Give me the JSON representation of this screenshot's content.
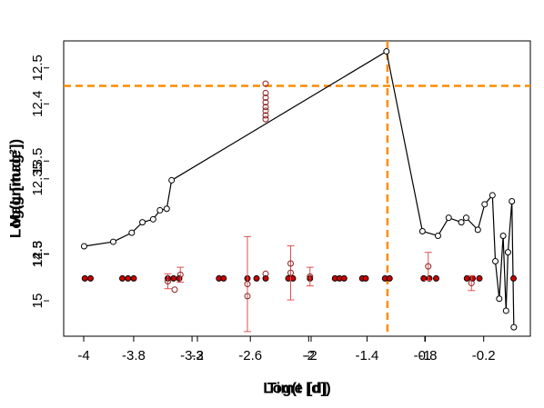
{
  "chart_data": [
    {
      "type": "line",
      "x_label": "Log(t [d])",
      "y_label": "Log(L [mag²])",
      "xlim": [
        -4.52,
        0.28
      ],
      "ylim": [
        12.245,
        12.442
      ],
      "xticks": [
        -3.8,
        -3.2,
        -2.6,
        -2.0,
        -1.4,
        -0.8,
        -0.2
      ],
      "yticks": [
        12.3,
        12.35,
        12.4
      ],
      "hline": 12.412,
      "vline": -1.19,
      "annotation_color": "#ff8c00",
      "series": [
        {
          "color": "#000000",
          "x": [
            -4.31,
            -4.01,
            -3.82,
            -3.71,
            -3.6,
            -3.53,
            -3.46,
            -3.41,
            -1.2,
            -0.83,
            -0.67,
            -0.56,
            -0.43,
            -0.38,
            -0.26,
            -0.19,
            -0.11,
            -0.08,
            -0.04,
            0.0,
            0.03,
            0.05,
            0.09,
            0.11
          ],
          "values": [
            12.305,
            12.308,
            12.314,
            12.321,
            12.323,
            12.329,
            12.33,
            12.349,
            12.435,
            12.315,
            12.312,
            12.324,
            12.321,
            12.324,
            12.316,
            12.333,
            12.339,
            12.295,
            12.27,
            12.312,
            12.262,
            12.301,
            12.335,
            12.251
          ]
        }
      ]
    },
    {
      "type": "scatter",
      "x_label": "Time [d]",
      "y_label": "Magnitude",
      "xlim": [
        -4.176,
        -0.072
      ],
      "ylim": [
        15.38,
        12.21
      ],
      "xticks": [
        -4,
        -3,
        -2,
        -1
      ],
      "yticks": [
        12.5,
        13.5,
        14.5,
        15.0
      ],
      "series": [
        {
          "color": "#cc0000",
          "filled": true,
          "x": [
            -3.99,
            -3.94,
            -3.66,
            -3.61,
            -3.56,
            -3.26,
            -3.21,
            -3.16,
            -2.81,
            -2.77,
            -2.56,
            -2.48,
            -2.4,
            -2.2,
            -2.16,
            -2.01,
            -1.79,
            -1.75,
            -1.71,
            -1.55,
            -1.52,
            -1.35,
            -1.31,
            -1.01,
            -0.96,
            -0.9,
            -0.63,
            -0.58,
            -0.52,
            -0.22
          ],
          "values": [
            14.76,
            14.76,
            14.76,
            14.76,
            14.76,
            14.76,
            14.76,
            14.76,
            14.76,
            14.76,
            14.76,
            14.76,
            14.76,
            14.76,
            14.76,
            14.76,
            14.76,
            14.76,
            14.76,
            14.76,
            14.76,
            14.76,
            14.76,
            14.76,
            14.76,
            14.76,
            14.76,
            14.76,
            14.76,
            14.76
          ]
        },
        {
          "color": "#8b2020",
          "error_color": "#e05050",
          "filled": false,
          "x": [
            -3.26,
            -3.2,
            -3.15,
            -2.56,
            -2.56,
            -2.4,
            -2.18,
            -2.18,
            -2.01,
            -0.97,
            -0.59,
            -2.4,
            -2.4,
            -2.4,
            -2.4,
            -2.4,
            -2.4,
            -2.4,
            -2.4
          ],
          "values": [
            14.79,
            14.88,
            14.72,
            14.82,
            14.95,
            14.71,
            14.7,
            14.6,
            14.74,
            14.63,
            14.81,
            12.67,
            12.77,
            12.82,
            12.87,
            12.92,
            12.96,
            13.01,
            13.05
          ],
          "errors": [
            0.08,
            null,
            0.08,
            0.51,
            null,
            null,
            0.29,
            null,
            0.1,
            0.15,
            0.08,
            null,
            null,
            null,
            null,
            null,
            null,
            null,
            null
          ]
        }
      ]
    }
  ]
}
